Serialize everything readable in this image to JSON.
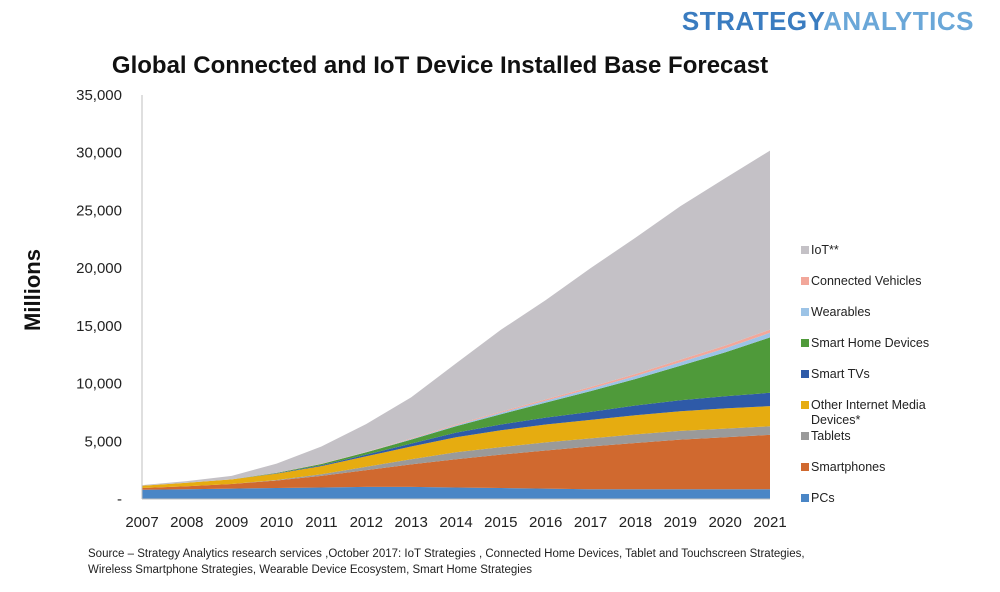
{
  "brand": {
    "part1": "STRATEGY",
    "part2": "ANALYTICS"
  },
  "source": "Source – Strategy Analytics research services ,October 2017: IoT Strategies , Connected Home Devices, Tablet and Touchscreen Strategies, Wireless Smartphone Strategies, Wearable Device Ecosystem,  Smart Home Strategies",
  "chart_data": {
    "type": "area",
    "stacked": true,
    "title": "Global Connected and IoT Device Installed Base Forecast",
    "ylabel": "Millions",
    "xlabel": "",
    "ylim": [
      0,
      35000
    ],
    "yticks": [
      "-",
      "5,000",
      "10,000",
      "15,000",
      "20,000",
      "25,000",
      "30,000",
      "35,000"
    ],
    "grid": false,
    "legend_position": "right",
    "x": [
      "2007",
      "2008",
      "2009",
      "2010",
      "2011",
      "2012",
      "2013",
      "2014",
      "2015",
      "2016",
      "2017",
      "2018",
      "2019",
      "2020",
      "2021"
    ],
    "series": [
      {
        "name": "PCs",
        "color": "#4a86c6",
        "values": [
          800,
          850,
          900,
          950,
          1000,
          1050,
          1050,
          1000,
          950,
          900,
          850,
          850,
          850,
          850,
          850
        ]
      },
      {
        "name": "Smartphones",
        "color": "#d0692f",
        "values": [
          150,
          250,
          400,
          650,
          1000,
          1450,
          1950,
          2450,
          2900,
          3300,
          3700,
          4000,
          4300,
          4500,
          4700
        ]
      },
      {
        "name": "Tablets",
        "color": "#9a9a9a",
        "values": [
          0,
          0,
          0,
          50,
          150,
          300,
          450,
          600,
          650,
          700,
          700,
          750,
          750,
          750,
          750
        ]
      },
      {
        "name": "Other Internet Media Devices*",
        "color": "#e6ac10",
        "values": [
          200,
          300,
          400,
          550,
          700,
          900,
          1100,
          1300,
          1450,
          1550,
          1600,
          1650,
          1700,
          1750,
          1750
        ]
      },
      {
        "name": "Smart TVs",
        "color": "#2e5aa8",
        "values": [
          0,
          0,
          0,
          30,
          80,
          150,
          250,
          400,
          500,
          600,
          700,
          850,
          950,
          1050,
          1150
        ]
      },
      {
        "name": "Smart Home Devices",
        "color": "#4f9a3a",
        "values": [
          0,
          0,
          0,
          30,
          100,
          200,
          350,
          550,
          900,
          1300,
          1800,
          2300,
          3000,
          3800,
          4800
        ]
      },
      {
        "name": "Wearables",
        "color": "#9cc3e6",
        "values": [
          0,
          0,
          0,
          0,
          0,
          20,
          50,
          80,
          120,
          160,
          200,
          250,
          300,
          350,
          400
        ]
      },
      {
        "name": "Connected Vehicles",
        "color": "#f2a79a",
        "values": [
          0,
          0,
          0,
          10,
          20,
          30,
          50,
          70,
          90,
          120,
          150,
          180,
          210,
          240,
          280
        ]
      },
      {
        "name": "IoT**",
        "color": "#c4c1c6",
        "values": [
          50,
          150,
          300,
          800,
          1500,
          2400,
          3550,
          5300,
          7100,
          8600,
          10300,
          11800,
          13300,
          14500,
          15500
        ]
      }
    ]
  }
}
